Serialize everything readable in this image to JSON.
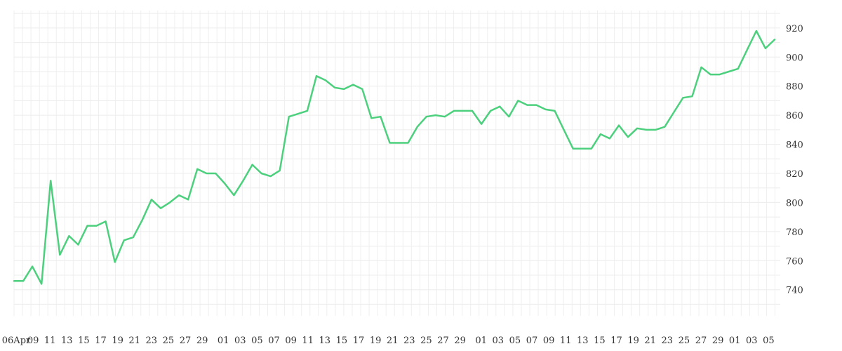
{
  "chart_data": {
    "type": "line",
    "title": "",
    "xlabel": "",
    "ylabel": "",
    "grid": true,
    "y_axis_side": "right",
    "ylim": [
      722,
      932
    ],
    "y_ticks": [
      740,
      760,
      780,
      800,
      820,
      840,
      860,
      880,
      900,
      920
    ],
    "x_tick_labels": [
      "06Apr",
      "09",
      "11",
      "13",
      "15",
      "17",
      "19",
      "21",
      "23",
      "25",
      "27",
      "29",
      "01",
      "03",
      "05",
      "07",
      "09",
      "11",
      "13",
      "15",
      "17",
      "19",
      "21",
      "23",
      "25",
      "27",
      "29",
      "01",
      "03",
      "05",
      "07",
      "09",
      "11",
      "13",
      "15",
      "17",
      "19",
      "21",
      "23",
      "25",
      "27",
      "29",
      "01",
      "03",
      "05"
    ],
    "series": [
      {
        "name": "",
        "color": "#4cd07d",
        "values": [
          746,
          746,
          756,
          744,
          815,
          764,
          777,
          771,
          784,
          784,
          787,
          759,
          774,
          776,
          788,
          802,
          796,
          800,
          805,
          802,
          823,
          820,
          820,
          813,
          805,
          815,
          826,
          820,
          818,
          822,
          859,
          861,
          863,
          887,
          884,
          879,
          878,
          881,
          878,
          858,
          859,
          841,
          841,
          841,
          852,
          859,
          860,
          859,
          863,
          863,
          863,
          854,
          863,
          866,
          859,
          870,
          867,
          867,
          864,
          863,
          850,
          837,
          837,
          837,
          847,
          844,
          853,
          845,
          851,
          850,
          850,
          852,
          862,
          872,
          873,
          893,
          888,
          888,
          890,
          892,
          905,
          918,
          906,
          912
        ]
      }
    ]
  }
}
